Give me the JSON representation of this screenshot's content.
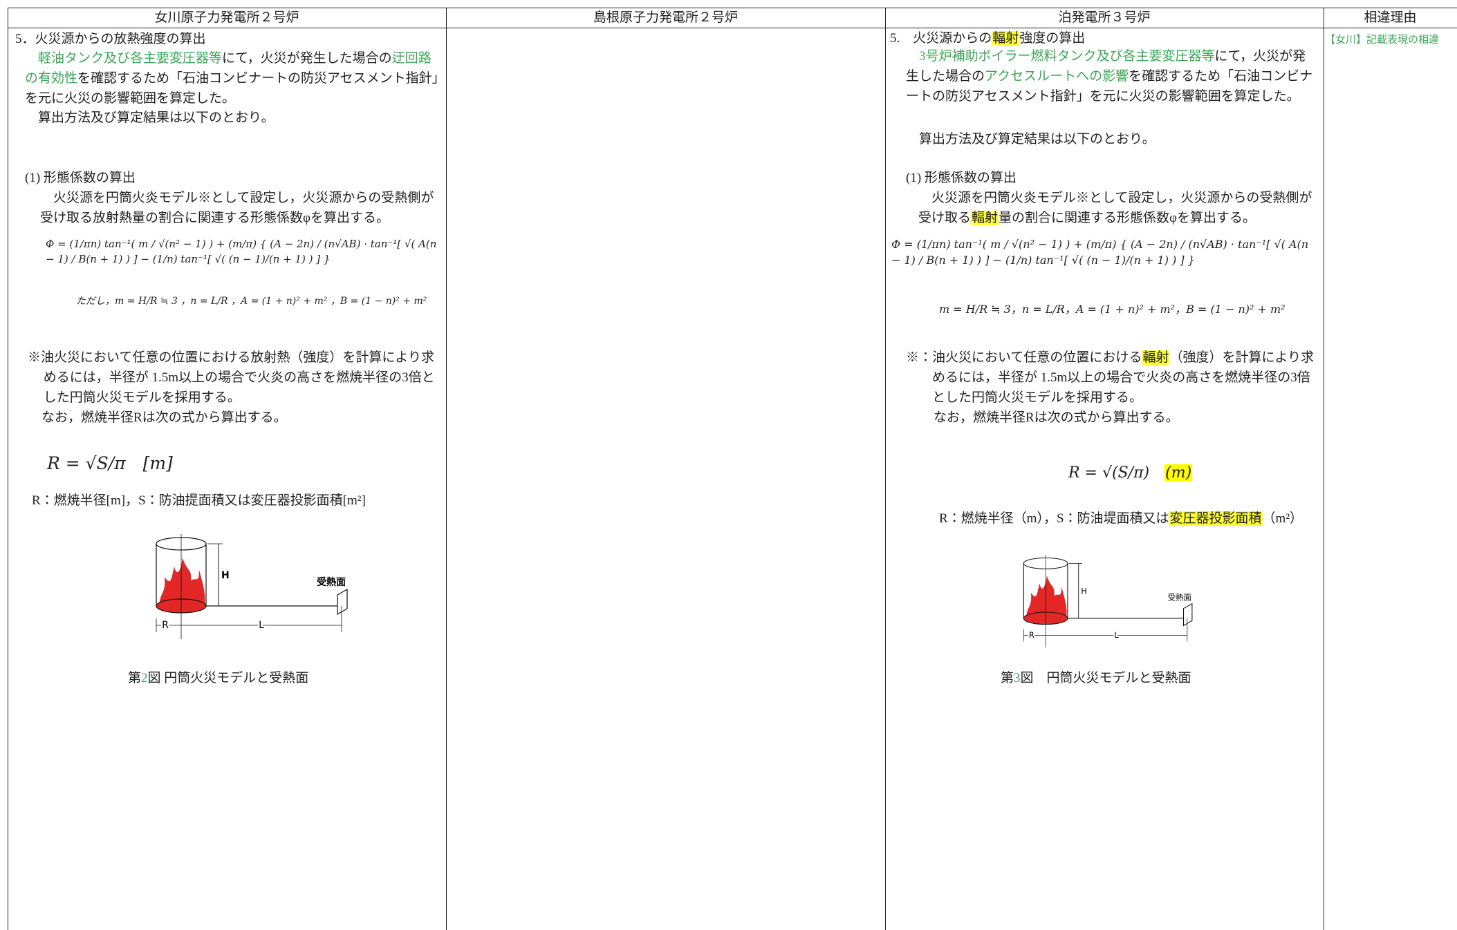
{
  "header": {
    "columns": [
      "女川原子力発電所２号炉",
      "島根原子力発電所２号炉",
      "泊発電所３号炉",
      "相違理由"
    ]
  },
  "onagawa": {
    "heading": [
      "5．火災源からの放熱強度の算出"
    ],
    "intro": [
      {
        "text": "軽油タンク及び各主要変圧器等",
        "color": "#3aa655"
      },
      "にて，火災が発生した場合の",
      {
        "text": "迂回路の有効性",
        "color": "#3aa655"
      },
      "を確認するため「石油コンビナートの防災アセスメント指針」を元に火災の影響範囲を算定した。"
    ],
    "method": [
      "算出方法及び算定結果は以下のとおり。"
    ],
    "section": [
      "(1) 形態係数の算出"
    ],
    "phi_text": [
      "火災源を円筒火炎モデル※として設定し，火災源からの受熱側が受け取る放射熱量の割合に関連する形態係数φを算出する。"
    ],
    "formula": [
      "Φ = (1/πn) tan⁻¹( m / √(n² − 1) ) + (m/π) { (A − 2n) / (n√AB) · tan⁻¹[ √( A(n − 1) / B(n + 1) ) ] − (1/n) tan⁻¹[ √( (n − 1)/(n + 1) ) ] }"
    ],
    "where": [
      "ただし，m = H/R ≒ 3 ，n = L/R ，A = (1 + n)² + m² ，B = (1 − n)² + m²"
    ],
    "note": [
      "※油火災において任意の位置における放射熱（強度）を計算により求めるには，半径が 1.5m以上の場合で火炎の高さを燃焼半径の3倍とした円筒火災モデルを採用する。"
    ],
    "radius_intro": [
      "なお，燃焼半径Rは次の式から算出する。"
    ],
    "radius_formula": [
      "R = √S/π　[m]"
    ],
    "radius_def": [
      "R：燃焼半径[m]，S：防油提面積又は変圧器投影面積[m²]"
    ],
    "figure_labels": {
      "height": "H",
      "receiver": "受熱面",
      "radius": "R",
      "distance": "L"
    },
    "caption": [
      "第",
      {
        "text": "2",
        "color": "#3aa655"
      },
      "図 円筒火災モデルと受熱面"
    ]
  },
  "tomari": {
    "heading": [
      "5.　火災源からの",
      {
        "text": "輻射",
        "highlight": "#ffff33"
      },
      "強度の算出"
    ],
    "intro": [
      {
        "text": "3号炉補助ボイラー燃料タンク及び各主要変圧器等",
        "color": "#3aa655"
      },
      "にて，火災が発生した場合の",
      {
        "text": "アクセスルートへの影響",
        "color": "#3aa655"
      },
      "を確認するため「石油コンビナートの防災アセスメント指針」を元に火災の影響範囲を算定した。"
    ],
    "method": [
      "算出方法及び算定結果は以下のとおり。"
    ],
    "section": [
      "(1) 形態係数の算出"
    ],
    "phi_text": [
      "火災源を円筒火炎モデル※として設定し，火災源からの受熱側が受け取る",
      {
        "text": "輻射",
        "highlight": "#ffff33"
      },
      "量の割合に関連する形態係数φを算出する。"
    ],
    "formula": [
      "Φ = (1/πn) tan⁻¹( m / √(n² − 1) ) + (m/π) { (A − 2n) / (n√AB) · tan⁻¹[ √( A(n − 1) / B(n + 1) ) ] − (1/n) tan⁻¹[ √( (n − 1)/(n + 1) ) ] }"
    ],
    "where": [
      "m = H/R ≒ 3，n = L/R，A = (1 + n)² + m²，B = (1 − n)² + m²"
    ],
    "note": [
      "※：油火災において任意の位置における",
      {
        "text": "輻射",
        "highlight": "#ffff33"
      },
      "（強度）を計算により求めるには，半径が 1.5m以上の場合で火炎の高さを燃焼半径の3倍とした円筒火災モデルを採用する。"
    ],
    "radius_intro": [
      "なお，燃焼半径Rは次の式から算出する。"
    ],
    "radius_formula": [
      "R = √(S/π)　",
      {
        "text": "(m)",
        "highlight": "#ffff00"
      }
    ],
    "radius_def": [
      "R：燃焼半径（m），S：防油堤面積又は",
      {
        "text": "変圧器投影面積",
        "highlight": "#ffff33"
      },
      "（m²）"
    ],
    "figure_labels": {
      "height": "H",
      "receiver": "受熱面",
      "radius": "R",
      "distance": "L"
    },
    "caption": [
      "第",
      {
        "text": "3",
        "color": "#3aa655"
      },
      "図　円筒火災モデルと受熱面"
    ]
  },
  "reason": {
    "text": [
      {
        "text": "【女川】記載表現の相違",
        "color": "#3aa655"
      }
    ]
  }
}
